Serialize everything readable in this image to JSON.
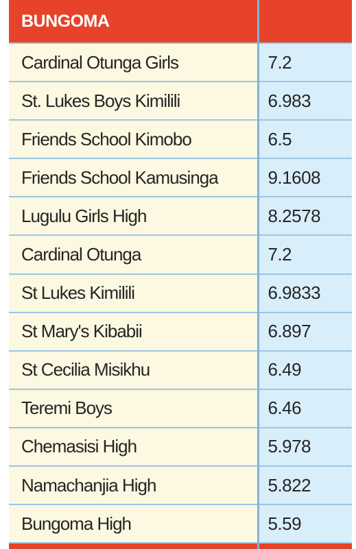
{
  "region": "BUNGOMA",
  "rows": [
    {
      "school": "Cardinal Otunga Girls",
      "score": "7.2"
    },
    {
      "school": "St. Lukes Boys Kimilili",
      "score": "6.983"
    },
    {
      "school": "Friends School Kimobo",
      "score": "6.5"
    },
    {
      "school": "Friends School Kamusinga",
      "score": "9.1608"
    },
    {
      "school": "Lugulu Girls High",
      "score": "8.2578"
    },
    {
      "school": "Cardinal Otunga",
      "score": "7.2"
    },
    {
      "school": "St Lukes Kimilili",
      "score": "6.9833"
    },
    {
      "school": "St Mary's Kibabii",
      "score": "6.897"
    },
    {
      "school": "St Cecilia Misikhu",
      "score": "6.49"
    },
    {
      "school": "Teremi Boys",
      "score": "6.46"
    },
    {
      "school": "Chemasisi High",
      "score": "5.978"
    },
    {
      "school": "Namachanjia High",
      "score": "5.822"
    },
    {
      "school": "Bungoma High",
      "score": "5.59"
    }
  ],
  "colors": {
    "header_bg": "#e6432a",
    "name_bg": "#fcf8e1",
    "score_bg": "#d9eefb",
    "grid": "#9cc6e2"
  }
}
